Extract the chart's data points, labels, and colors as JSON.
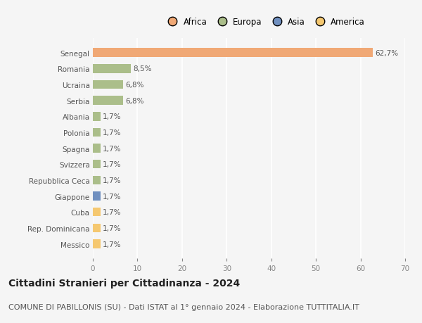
{
  "countries": [
    "Senegal",
    "Romania",
    "Ucraina",
    "Serbia",
    "Albania",
    "Polonia",
    "Spagna",
    "Svizzera",
    "Repubblica Ceca",
    "Giappone",
    "Cuba",
    "Rep. Dominicana",
    "Messico"
  ],
  "values": [
    62.7,
    8.5,
    6.8,
    6.8,
    1.7,
    1.7,
    1.7,
    1.7,
    1.7,
    1.7,
    1.7,
    1.7,
    1.7
  ],
  "labels": [
    "62,7%",
    "8,5%",
    "6,8%",
    "6,8%",
    "1,7%",
    "1,7%",
    "1,7%",
    "1,7%",
    "1,7%",
    "1,7%",
    "1,7%",
    "1,7%",
    "1,7%"
  ],
  "colors": [
    "#F0A875",
    "#ABBE8A",
    "#ABBE8A",
    "#ABBE8A",
    "#ABBE8A",
    "#ABBE8A",
    "#ABBE8A",
    "#ABBE8A",
    "#ABBE8A",
    "#7090C0",
    "#F5C870",
    "#F5C870",
    "#F5C870"
  ],
  "continent_labels": [
    "Africa",
    "Europa",
    "Asia",
    "America"
  ],
  "continent_colors": [
    "#F0A875",
    "#ABBE8A",
    "#7090C0",
    "#F5C870"
  ],
  "xlim": [
    0,
    70
  ],
  "xticks": [
    0,
    10,
    20,
    30,
    40,
    50,
    60,
    70
  ],
  "title": "Cittadini Stranieri per Cittadinanza - 2024",
  "subtitle": "COMUNE DI PABILLONIS (SU) - Dati ISTAT al 1° gennaio 2024 - Elaborazione TUTTITALIA.IT",
  "bg_color": "#f5f5f5",
  "bar_height": 0.55,
  "title_fontsize": 10,
  "subtitle_fontsize": 8,
  "label_fontsize": 7.5,
  "tick_fontsize": 7.5,
  "legend_fontsize": 8.5
}
